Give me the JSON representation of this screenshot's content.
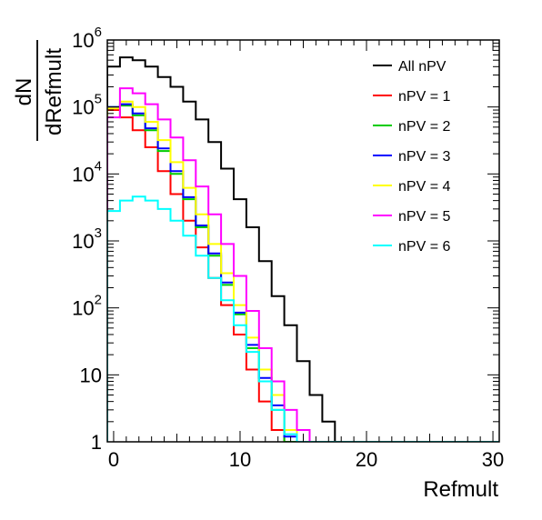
{
  "chart_data": {
    "type": "line",
    "step": true,
    "log_y": true,
    "xlabel": "Refmult",
    "ylabel_numerator": "dN",
    "ylabel_denominator": "dRefmult",
    "xlim": [
      -0.5,
      30.5
    ],
    "ylim": [
      1,
      1000000
    ],
    "x_ticks": [
      0,
      10,
      20,
      30
    ],
    "y_ticks": [
      {
        "value": 1,
        "base": "1",
        "exp": ""
      },
      {
        "value": 10,
        "base": "10",
        "exp": ""
      },
      {
        "value": 100,
        "base": "10",
        "exp": "2"
      },
      {
        "value": 1000,
        "base": "10",
        "exp": "3"
      },
      {
        "value": 10000,
        "base": "10",
        "exp": "4"
      },
      {
        "value": 100000,
        "base": "10",
        "exp": "5"
      },
      {
        "value": 1000000,
        "base": "10",
        "exp": "6"
      }
    ],
    "legend_position": "top-right",
    "series": [
      {
        "name": "All nPV",
        "color": "#000000",
        "values": [
          400000,
          550000,
          500000,
          400000,
          280000,
          200000,
          120000,
          65000,
          30000,
          12000,
          4200,
          1600,
          500,
          150,
          55,
          16,
          5,
          2,
          0
        ]
      },
      {
        "name": "nPV = 1",
        "color": "#ff0000",
        "values": [
          90000,
          70000,
          45000,
          25000,
          11000,
          5000,
          2000,
          800,
          280,
          110,
          40,
          12,
          4,
          1.5,
          0,
          0,
          0,
          0,
          0
        ]
      },
      {
        "name": "nPV = 2",
        "color": "#00cc00",
        "values": [
          100000,
          105000,
          75000,
          45000,
          22000,
          10000,
          4200,
          1600,
          600,
          220,
          80,
          25,
          8,
          3,
          1,
          0,
          0,
          0,
          0
        ]
      },
      {
        "name": "nPV = 3",
        "color": "#0000ff",
        "values": [
          100000,
          110000,
          80000,
          48000,
          24000,
          11000,
          4500,
          1700,
          650,
          240,
          85,
          28,
          9,
          3.5,
          1.2,
          0,
          0,
          0,
          0
        ]
      },
      {
        "name": "nPV = 4",
        "color": "#ffff00",
        "values": [
          95000,
          120000,
          100000,
          60000,
          32000,
          15000,
          6200,
          2500,
          900,
          330,
          110,
          36,
          12,
          5,
          1.5,
          1,
          0,
          0,
          0
        ]
      },
      {
        "name": "nPV = 5",
        "color": "#ff00ff",
        "values": [
          70000,
          190000,
          160000,
          110000,
          65000,
          35000,
          16000,
          6500,
          2500,
          900,
          300,
          90,
          25,
          8,
          3,
          1.5,
          1,
          0,
          0
        ]
      },
      {
        "name": "nPV = 6",
        "color": "#00ffff",
        "values": [
          2800,
          4000,
          4600,
          4000,
          3000,
          2000,
          1200,
          600,
          280,
          130,
          55,
          22,
          8,
          3,
          1.3,
          0,
          0,
          0,
          0
        ]
      }
    ]
  }
}
